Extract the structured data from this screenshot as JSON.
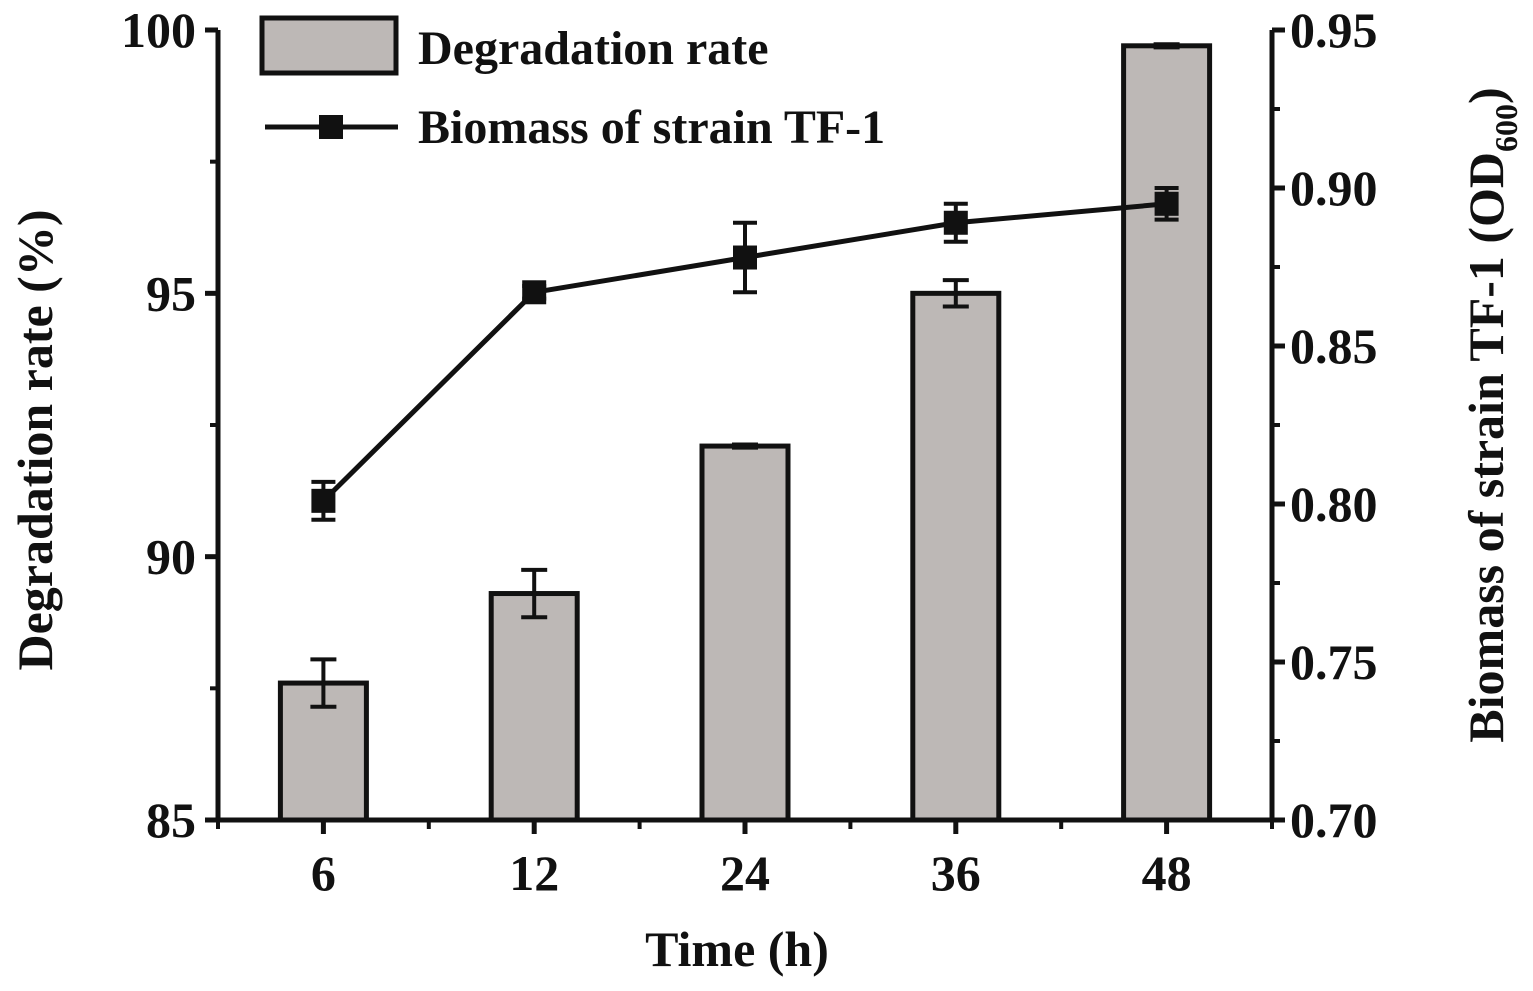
{
  "chart_data": {
    "type": "bar+line",
    "categories": [
      "6",
      "12",
      "24",
      "36",
      "48"
    ],
    "xlabel": "Time (h)",
    "series": [
      {
        "name": "Degradation rate",
        "kind": "bar",
        "axis": "left",
        "values": [
          87.6,
          89.3,
          92.1,
          95.0,
          99.7
        ],
        "errors": [
          0.45,
          0.45,
          0.03,
          0.25,
          0.03
        ],
        "color": "#bdb8b6"
      },
      {
        "name": "Biomass of strain TF-1",
        "kind": "line",
        "marker": "square",
        "axis": "right",
        "values": [
          0.801,
          0.867,
          0.878,
          0.889,
          0.895
        ],
        "errors": [
          0.006,
          0.002,
          0.011,
          0.006,
          0.005
        ],
        "color": "#111111"
      }
    ],
    "y_left": {
      "label_main": "Degradation rate (%)",
      "lim": [
        85,
        100
      ],
      "ticks": [
        "85",
        "90",
        "95",
        "100"
      ],
      "tick_values": [
        85,
        90,
        95,
        100
      ]
    },
    "y_right": {
      "label_main": "Biomass of strain TF-1 (OD",
      "label_sub": "600",
      "label_end": ")",
      "lim": [
        0.7,
        0.95
      ],
      "ticks": [
        "0.70",
        "0.75",
        "0.80",
        "0.85",
        "0.90",
        "0.95"
      ],
      "tick_values": [
        0.7,
        0.75,
        0.8,
        0.85,
        0.9,
        0.95
      ]
    },
    "legend": {
      "placement": "top-left",
      "entries": [
        "Degradation rate",
        "Biomass of strain TF-1"
      ]
    },
    "grid": false
  }
}
